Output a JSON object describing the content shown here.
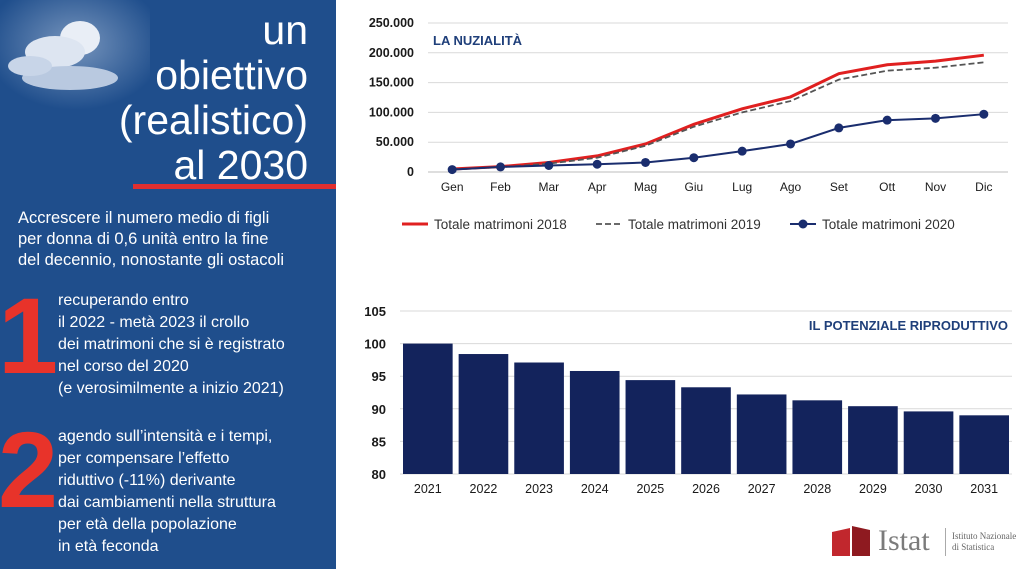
{
  "left_panel": {
    "title_lines": [
      "un",
      "obiettivo",
      "(realistico)",
      "al 2030"
    ],
    "intro_lines": [
      "Accrescere il numero medio di figli",
      "per donna di 0,6 unità entro la fine",
      "del decennio, nonostante gli ostacoli"
    ],
    "points": [
      {
        "number": "1",
        "lines": [
          "recuperando entro",
          "il 2022 - metà 2023  il crollo",
          "dei matrimoni che si è registrato",
          "nel corso del 2020",
          "(e verosimilmente a inizio 2021)"
        ]
      },
      {
        "number": "2",
        "lines": [
          "agendo sull’intensità e i tempi,",
          "per compensare l’effetto",
          "riduttivo (-11%) derivante",
          "dai  cambiamenti nella struttura",
          "per età della popolazione",
          "in età feconda"
        ]
      }
    ],
    "colors": {
      "background": "#1f4e8c",
      "accent": "#e8332a"
    }
  },
  "chart_data": [
    {
      "type": "line",
      "title": "LA NUZIALITÀ",
      "categories": [
        "Gen",
        "Feb",
        "Mar",
        "Apr",
        "Mag",
        "Giu",
        "Lug",
        "Ago",
        "Set",
        "Ott",
        "Nov",
        "Dic"
      ],
      "y_tick_labels": [
        "0",
        "50.000",
        "100.000",
        "150.000",
        "200.000",
        "250.000"
      ],
      "ylim": [
        0,
        250000
      ],
      "grid": true,
      "legend_position": "bottom",
      "series": [
        {
          "name": "Totale matrimoni 2018",
          "values": [
            5000,
            9000,
            16000,
            27000,
            47000,
            80000,
            106000,
            126000,
            165000,
            180000,
            186000,
            196000
          ],
          "color": "#e02020",
          "style": "solid"
        },
        {
          "name": "Totale matrimoni 2019",
          "values": [
            4500,
            8000,
            14000,
            24000,
            44000,
            76000,
            100000,
            119000,
            155000,
            170000,
            175000,
            184000
          ],
          "color": "#555555",
          "style": "dashed"
        },
        {
          "name": "Totale matrimoni 2020",
          "values": [
            4000,
            8500,
            11000,
            13000,
            16000,
            24000,
            35000,
            47000,
            74000,
            87000,
            90000,
            97000
          ],
          "color": "#1a2d6e",
          "style": "markers"
        }
      ]
    },
    {
      "type": "bar",
      "title": "IL POTENZIALE RIPRODUTTIVO",
      "categories": [
        "2021",
        "2022",
        "2023",
        "2024",
        "2025",
        "2026",
        "2027",
        "2028",
        "2029",
        "2030",
        "2031"
      ],
      "values": [
        100,
        98.4,
        97.1,
        95.8,
        94.4,
        93.3,
        92.2,
        91.3,
        90.4,
        89.6,
        89.0
      ],
      "y_tick_labels": [
        "80",
        "85",
        "90",
        "95",
        "100",
        "105"
      ],
      "ylim": [
        80,
        105
      ],
      "grid": true,
      "color": "#13235c"
    }
  ],
  "logo": {
    "word": "Istat",
    "sub_lines": [
      "Istituto Nazionale",
      "di Statistica"
    ],
    "colors": {
      "mark": "#c1272d"
    }
  }
}
